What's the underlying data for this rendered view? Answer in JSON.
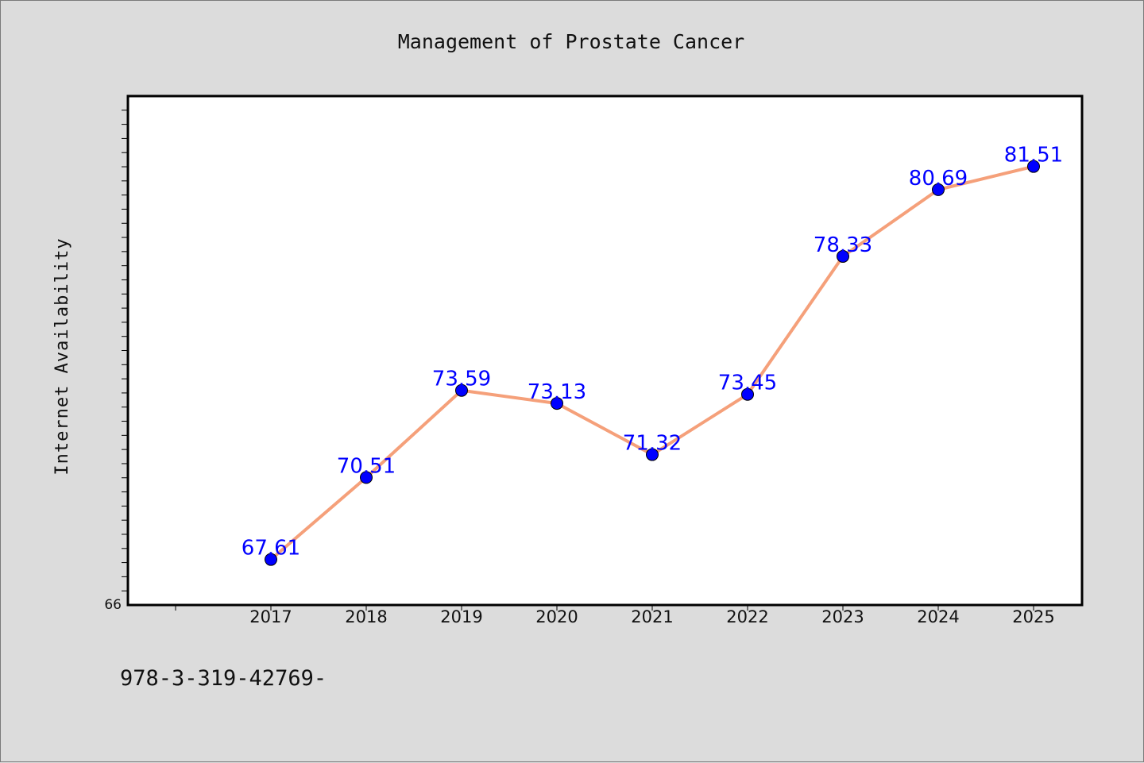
{
  "chart_data": {
    "type": "line",
    "title": "Management of Prostate Cancer",
    "xlabel": "",
    "ylabel": "Internet Availability",
    "categories": [
      "2017",
      "2018",
      "2019",
      "2020",
      "2021",
      "2022",
      "2023",
      "2024",
      "2025"
    ],
    "series": [
      {
        "values": [
          67.61,
          70.51,
          73.59,
          73.13,
          71.32,
          73.45,
          78.33,
          80.69,
          81.51
        ]
      }
    ],
    "data_labels": [
      "67.61",
      "70.51",
      "73.59",
      "73.13",
      "71.32",
      "73.45",
      "78.33",
      "80.69",
      "81.51"
    ],
    "ylim": [
      66,
      84
    ],
    "y_tick_labels": [
      "66"
    ],
    "grid": false,
    "line_color": "#f5a07a",
    "marker_color": "#0000ff",
    "label_color": "#0000ff"
  },
  "footer_text": "978-3-319-42769-"
}
